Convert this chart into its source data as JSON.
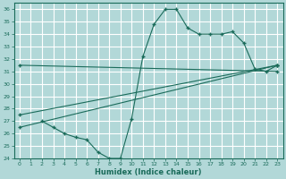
{
  "xlabel": "Humidex (Indice chaleur)",
  "ylim": [
    24,
    36.5
  ],
  "xlim": [
    -0.5,
    23.5
  ],
  "yticks": [
    24,
    25,
    26,
    27,
    28,
    29,
    30,
    31,
    32,
    33,
    34,
    35,
    36
  ],
  "xticks": [
    0,
    1,
    2,
    3,
    4,
    5,
    6,
    7,
    8,
    9,
    10,
    11,
    12,
    13,
    14,
    15,
    16,
    17,
    18,
    19,
    20,
    21,
    22,
    23
  ],
  "bg_color": "#b2d8d8",
  "grid_color": "#c8e8e8",
  "line_color": "#1a6b5a",
  "lines": [
    {
      "x": [
        0,
        23
      ],
      "y": [
        31.5,
        31.0
      ]
    },
    {
      "x": [
        0,
        23
      ],
      "y": [
        26.5,
        31.5
      ]
    },
    {
      "x": [
        0,
        23
      ],
      "y": [
        27.5,
        31.5
      ]
    },
    {
      "x": [
        2,
        3,
        4,
        5,
        6,
        7,
        8,
        9,
        10,
        11,
        12,
        13,
        14,
        15,
        16,
        17,
        18,
        19,
        20,
        21,
        22,
        23
      ],
      "y": [
        27.0,
        26.5,
        26.0,
        25.7,
        25.5,
        24.5,
        24.0,
        24.0,
        27.2,
        32.2,
        34.8,
        36.0,
        36.0,
        34.5,
        34.0,
        34.0,
        34.0,
        34.2,
        33.3,
        31.2,
        31.0,
        31.5
      ]
    }
  ]
}
